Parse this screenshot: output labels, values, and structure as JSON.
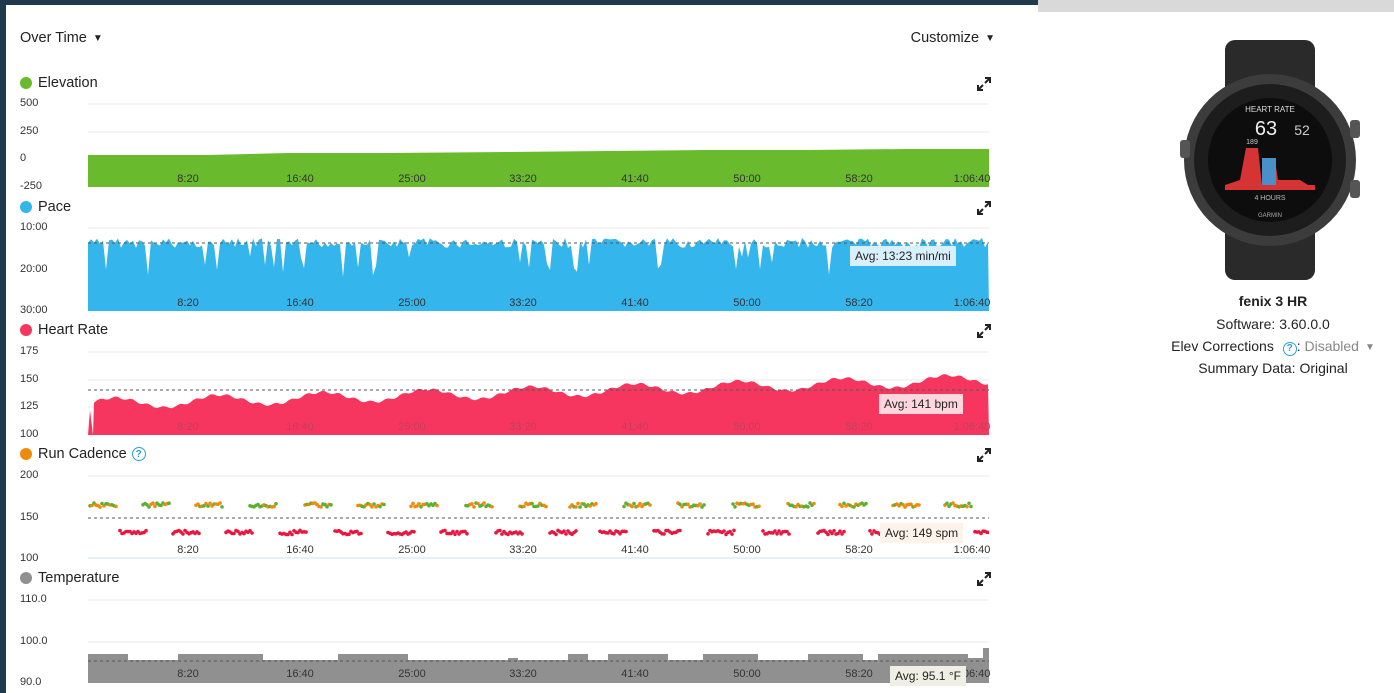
{
  "header": {
    "over_time_label": "Over Time",
    "customize_label": "Customize"
  },
  "colors": {
    "elevation": "#6aba2d",
    "pace": "#34b5ec",
    "heart_rate": "#f7365f",
    "cadence_dot": "#f08a0c",
    "cadence_green": "#5ab030",
    "cadence_red": "#e8163f",
    "temperature": "#909090"
  },
  "x_ticks": [
    "8:20",
    "16:40",
    "25:00",
    "33:20",
    "41:40",
    "50:00",
    "58:20",
    "1:06:40"
  ],
  "charts": {
    "elevation": {
      "title": "Elevation",
      "y_ticks": [
        "500",
        "250",
        "0",
        "-250"
      ]
    },
    "pace": {
      "title": "Pace",
      "y_ticks": [
        "10:00",
        "20:00",
        "30:00"
      ],
      "avg_label": "Avg: 13:23 min/mi"
    },
    "heart_rate": {
      "title": "Heart Rate",
      "y_ticks": [
        "175",
        "150",
        "125",
        "100"
      ],
      "avg_label": "Avg: 141 bpm"
    },
    "cadence": {
      "title": "Run Cadence",
      "y_ticks": [
        "200",
        "150",
        "100"
      ],
      "avg_label": "Avg: 149 spm"
    },
    "temperature": {
      "title": "Temperature",
      "y_ticks": [
        "110.0",
        "100.0",
        "90.0"
      ],
      "avg_label": "Avg: 95.1 °F"
    }
  },
  "device": {
    "name": "fenix 3 HR",
    "software_label": "Software:",
    "software_value": "3.60.0.0",
    "elev_label": "Elev Corrections",
    "elev_value": "Disabled",
    "summary_label": "Summary Data:",
    "summary_value": "Original",
    "watch": {
      "screen_title": "HEART RATE",
      "big_value": "63",
      "side_value": "52",
      "peak_value": "189",
      "hours_label": "4 HOURS",
      "brand": "GARMIN"
    }
  },
  "chart_data": [
    {
      "type": "area",
      "title": "Elevation",
      "ylabel": "",
      "ylim": [
        -250,
        500
      ],
      "x": [
        "0:00",
        "8:20",
        "16:40",
        "25:00",
        "33:20",
        "41:40",
        "50:00",
        "58:20",
        "1:06:40",
        "1:10:00"
      ],
      "values": [
        4,
        5,
        8,
        10,
        12,
        14,
        16,
        18,
        20,
        22
      ]
    },
    {
      "type": "area",
      "title": "Pace",
      "ylabel": "min/mi",
      "ylim": [
        "10:00",
        "30:00"
      ],
      "inverted": true,
      "x": [
        "0:00",
        "8:20",
        "16:40",
        "25:00",
        "33:20",
        "41:40",
        "50:00",
        "58:20",
        "1:06:40",
        "1:10:00"
      ],
      "values": [
        13.8,
        13.6,
        14.5,
        13.2,
        13.5,
        13.0,
        14.2,
        13.1,
        13.4,
        13.5
      ],
      "average": "13:23"
    },
    {
      "type": "area",
      "title": "Heart Rate",
      "ylabel": "bpm",
      "ylim": [
        100,
        175
      ],
      "x": [
        "0:00",
        "8:20",
        "16:40",
        "25:00",
        "33:20",
        "41:40",
        "50:00",
        "58:20",
        "1:06:40",
        "1:10:00"
      ],
      "values": [
        108,
        131,
        133,
        138,
        144,
        150,
        151,
        152,
        154,
        156
      ],
      "average": 141
    },
    {
      "type": "scatter",
      "title": "Run Cadence",
      "ylabel": "spm",
      "ylim": [
        100,
        200
      ],
      "series": [
        {
          "x": [
            "8:20",
            "16:40",
            "25:00",
            "33:20",
            "41:40",
            "50:00",
            "58:20",
            "1:06:40"
          ],
          "values": [
            165,
            165,
            164,
            167,
            165,
            165,
            166,
            165
          ]
        },
        {
          "x": [
            "8:20",
            "16:40",
            "25:00",
            "33:20",
            "41:40",
            "50:00",
            "58:20",
            "1:06:40"
          ],
          "values": [
            132,
            132,
            133,
            133,
            133,
            134,
            133,
            132
          ]
        }
      ],
      "average": 149
    },
    {
      "type": "area",
      "title": "Temperature",
      "ylabel": "°F",
      "ylim": [
        90,
        110
      ],
      "x": [
        "0:00",
        "8:20",
        "16:40",
        "25:00",
        "33:20",
        "41:40",
        "50:00",
        "58:20",
        "1:06:40",
        "1:10:00"
      ],
      "values": [
        96.0,
        95.0,
        96.0,
        95.0,
        95.0,
        96.0,
        95.0,
        95.0,
        96.0,
        99.0
      ],
      "average": "95.1"
    }
  ]
}
